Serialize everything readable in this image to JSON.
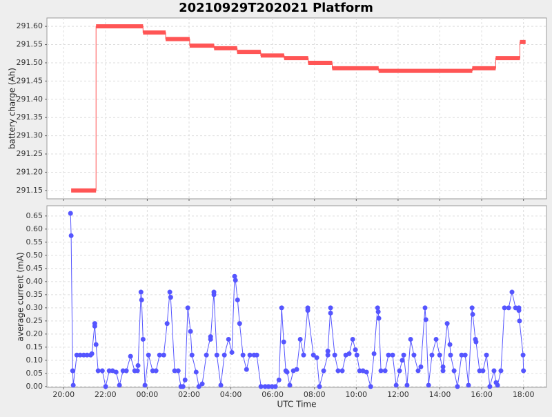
{
  "chart_data": [
    {
      "type": "step",
      "title": "20210929T202021 Platform",
      "ylabel": "battery charge (Ah)",
      "grid": true,
      "xlim": [
        19.2,
        43.1
      ],
      "ylim": [
        291.127,
        291.623
      ],
      "yticks": [
        {
          "value": 291.15,
          "label": "291.15"
        },
        {
          "value": 291.2,
          "label": "291.20"
        },
        {
          "value": 291.25,
          "label": "291.25"
        },
        {
          "value": 291.3,
          "label": "291.30"
        },
        {
          "value": 291.35,
          "label": "291.35"
        },
        {
          "value": 291.4,
          "label": "291.40"
        },
        {
          "value": 291.45,
          "label": "291.45"
        },
        {
          "value": 291.5,
          "label": "291.50"
        },
        {
          "value": 291.55,
          "label": "291.55"
        },
        {
          "value": 291.6,
          "label": "291.60"
        }
      ],
      "series": [
        {
          "color": "#ff5555",
          "x": [
            20.36,
            21.55,
            21.55,
            23.8,
            23.8,
            24.88,
            24.88,
            26.03,
            26.03,
            27.2,
            27.2,
            28.3,
            28.3,
            29.43,
            29.43,
            30.55,
            30.55,
            31.7,
            31.7,
            32.85,
            32.85,
            35.07,
            35.07,
            39.55,
            39.55,
            40.67,
            40.67,
            41.83,
            41.83,
            42.1
          ],
          "values": [
            291.15,
            291.15,
            291.6,
            291.6,
            291.583,
            291.583,
            291.565,
            291.565,
            291.547,
            291.547,
            291.54,
            291.54,
            291.53,
            291.53,
            291.52,
            291.52,
            291.513,
            291.513,
            291.5,
            291.5,
            291.485,
            291.485,
            291.478,
            291.478,
            291.485,
            291.485,
            291.513,
            291.513,
            291.557,
            291.557
          ]
        }
      ]
    },
    {
      "type": "line",
      "xlabel": "UTC Time",
      "ylabel": "average current (mA)",
      "grid": true,
      "xlim": [
        19.2,
        43.1
      ],
      "ylim": [
        -0.003,
        0.689
      ],
      "xticks": [
        {
          "value": 20,
          "label": "20:00"
        },
        {
          "value": 22,
          "label": "22:00"
        },
        {
          "value": 24,
          "label": "00:00"
        },
        {
          "value": 26,
          "label": "02:00"
        },
        {
          "value": 28,
          "label": "04:00"
        },
        {
          "value": 30,
          "label": "06:00"
        },
        {
          "value": 32,
          "label": "08:00"
        },
        {
          "value": 34,
          "label": "10:00"
        },
        {
          "value": 36,
          "label": "12:00"
        },
        {
          "value": 38,
          "label": "14:00"
        },
        {
          "value": 40,
          "label": "16:00"
        },
        {
          "value": 42,
          "label": "18:00"
        }
      ],
      "yticks": [
        {
          "value": 0,
          "label": "0.00"
        },
        {
          "value": 0.05,
          "label": "0.05"
        },
        {
          "value": 0.1,
          "label": "0.10"
        },
        {
          "value": 0.15,
          "label": "0.15"
        },
        {
          "value": 0.2,
          "label": "0.20"
        },
        {
          "value": 0.25,
          "label": "0.25"
        },
        {
          "value": 0.3,
          "label": "0.30"
        },
        {
          "value": 0.35,
          "label": "0.35"
        },
        {
          "value": 0.4,
          "label": "0.40"
        },
        {
          "value": 0.45,
          "label": "0.45"
        },
        {
          "value": 0.5,
          "label": "0.50"
        },
        {
          "value": 0.55,
          "label": "0.55"
        },
        {
          "value": 0.6,
          "label": "0.60"
        },
        {
          "value": 0.65,
          "label": "0.65"
        }
      ],
      "series": [
        {
          "color": "#5555ff",
          "x": [
            20.33,
            20.36,
            20.43,
            20.46,
            20.63,
            20.79,
            20.96,
            21.12,
            21.29,
            21.35,
            21.49,
            21.49,
            21.55,
            21.65,
            21.85,
            22.01,
            22.18,
            22.34,
            22.51,
            22.67,
            22.84,
            23.0,
            23.2,
            23.4,
            23.53,
            23.56,
            23.7,
            23.73,
            23.8,
            23.89,
            24.06,
            24.26,
            24.42,
            24.59,
            24.79,
            24.95,
            25.08,
            25.12,
            25.31,
            25.48,
            25.61,
            25.71,
            25.81,
            25.94,
            26.07,
            26.14,
            26.34,
            26.47,
            26.63,
            26.83,
            27.03,
            27.03,
            27.19,
            27.19,
            27.33,
            27.52,
            27.69,
            27.89,
            28.05,
            28.18,
            28.22,
            28.32,
            28.42,
            28.58,
            28.75,
            28.91,
            29.11,
            29.24,
            29.44,
            29.64,
            29.8,
            29.97,
            30.13,
            30.3,
            30.43,
            30.53,
            30.63,
            30.69,
            30.82,
            30.99,
            31.15,
            31.32,
            31.48,
            31.68,
            31.68,
            31.95,
            32.11,
            32.24,
            32.44,
            32.64,
            32.64,
            32.77,
            32.77,
            32.97,
            33.13,
            33.33,
            33.5,
            33.66,
            33.83,
            33.96,
            34.03,
            34.16,
            34.32,
            34.49,
            34.69,
            34.85,
            35.02,
            35.05,
            35.08,
            35.18,
            35.38,
            35.54,
            35.74,
            35.91,
            36.07,
            36.2,
            36.27,
            36.43,
            36.6,
            36.76,
            36.96,
            37.09,
            37.29,
            37.33,
            37.46,
            37.62,
            37.82,
            37.99,
            38.15,
            38.15,
            38.35,
            38.48,
            38.51,
            38.68,
            38.84,
            39.04,
            39.21,
            39.37,
            39.54,
            39.57,
            39.7,
            39.73,
            39.9,
            40.06,
            40.23,
            40.39,
            40.59,
            40.69,
            40.76,
            40.92,
            41.09,
            41.29,
            41.45,
            41.62,
            41.78,
            41.78,
            41.81,
            41.98,
            42.0
          ],
          "values": [
            0.66,
            0.575,
            0.06,
            0.005,
            0.12,
            0.12,
            0.12,
            0.12,
            0.12,
            0.125,
            0.24,
            0.23,
            0.16,
            0.06,
            0.06,
            0,
            0.06,
            0.06,
            0.055,
            0.005,
            0.06,
            0.06,
            0.115,
            0.06,
            0.06,
            0.08,
            0.36,
            0.33,
            0.18,
            0.005,
            0.12,
            0.06,
            0.06,
            0.12,
            0.12,
            0.24,
            0.36,
            0.34,
            0.06,
            0.06,
            0,
            0,
            0.025,
            0.3,
            0.21,
            0.12,
            0.055,
            0,
            0.01,
            0.12,
            0.19,
            0.18,
            0.36,
            0.35,
            0.12,
            0.005,
            0.12,
            0.18,
            0.13,
            0.42,
            0.405,
            0.33,
            0.24,
            0.12,
            0.065,
            0.12,
            0.12,
            0.12,
            0,
            0,
            0,
            0,
            0,
            0.025,
            0.3,
            0.17,
            0.06,
            0.055,
            0.005,
            0.06,
            0.065,
            0.18,
            0.12,
            0.3,
            0.29,
            0.12,
            0.11,
            0,
            0.06,
            0.12,
            0.135,
            0.3,
            0.28,
            0.12,
            0.06,
            0.06,
            0.12,
            0.125,
            0.18,
            0.14,
            0.12,
            0.06,
            0.06,
            0.055,
            0,
            0.125,
            0.3,
            0.285,
            0.26,
            0.06,
            0.06,
            0.12,
            0.12,
            0.005,
            0.06,
            0.1,
            0.12,
            0.005,
            0.18,
            0.12,
            0.06,
            0.075,
            0.3,
            0.255,
            0.005,
            0.12,
            0.18,
            0.12,
            0.06,
            0.075,
            0.24,
            0.16,
            0.12,
            0.06,
            0,
            0.12,
            0.12,
            0.005,
            0.3,
            0.275,
            0.18,
            0.17,
            0.06,
            0.06,
            0.12,
            0,
            0.06,
            0.015,
            0.005,
            0.06,
            0.3,
            0.3,
            0.36,
            0.3,
            0.3,
            0.29,
            0.25,
            0.12,
            0.06
          ]
        }
      ]
    }
  ]
}
